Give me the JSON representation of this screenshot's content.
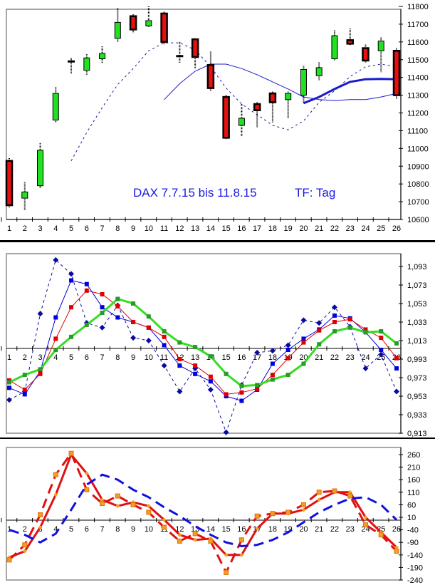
{
  "chart_data": [
    {
      "type": "candlestick",
      "title": "DAX 7.7.15 bis 11.8.15",
      "subtitle": "TF: Tag",
      "x": [
        1,
        2,
        3,
        4,
        5,
        6,
        7,
        8,
        9,
        10,
        11,
        12,
        13,
        14,
        15,
        16,
        17,
        18,
        19,
        20,
        21,
        22,
        23,
        24,
        25,
        26
      ],
      "ylim": [
        10600,
        11800
      ],
      "yticks": [
        11800,
        11700,
        11600,
        11500,
        11400,
        11300,
        11200,
        11100,
        11000,
        10900,
        10800,
        10700,
        10600
      ],
      "candles": [
        {
          "x": 1,
          "open": 10930,
          "close": 10680,
          "high": 10945,
          "low": 10665,
          "color": "red"
        },
        {
          "x": 2,
          "open": 10720,
          "close": 10755,
          "high": 10810,
          "low": 10650,
          "color": "green"
        },
        {
          "x": 3,
          "open": 10790,
          "close": 10990,
          "high": 11030,
          "low": 10775,
          "color": "green"
        },
        {
          "x": 4,
          "open": 11160,
          "close": 11310,
          "high": 11345,
          "low": 11145,
          "color": "green"
        },
        {
          "x": 5,
          "open": 11490,
          "close": 11485,
          "high": 11510,
          "low": 11420,
          "color": "doji"
        },
        {
          "x": 6,
          "open": 11440,
          "close": 11510,
          "high": 11530,
          "low": 11415,
          "color": "green"
        },
        {
          "x": 7,
          "open": 11505,
          "close": 11535,
          "high": 11575,
          "low": 11480,
          "color": "green"
        },
        {
          "x": 8,
          "open": 11620,
          "close": 11710,
          "high": 11790,
          "low": 11600,
          "color": "green"
        },
        {
          "x": 9,
          "open": 11745,
          "close": 11670,
          "high": 11755,
          "low": 11650,
          "color": "red"
        },
        {
          "x": 10,
          "open": 11690,
          "close": 11720,
          "high": 11800,
          "low": 11685,
          "color": "green"
        },
        {
          "x": 11,
          "open": 11760,
          "close": 11600,
          "high": 11770,
          "low": 11585,
          "color": "red"
        },
        {
          "x": 12,
          "open": 11520,
          "close": 11515,
          "high": 11600,
          "low": 11480,
          "color": "doji"
        },
        {
          "x": 13,
          "open": 11615,
          "close": 11515,
          "high": 11620,
          "low": 11450,
          "color": "red"
        },
        {
          "x": 14,
          "open": 11470,
          "close": 11340,
          "high": 11545,
          "low": 11325,
          "color": "red"
        },
        {
          "x": 15,
          "open": 11290,
          "close": 11060,
          "high": 11300,
          "low": 11050,
          "color": "red"
        },
        {
          "x": 16,
          "open": 11130,
          "close": 11170,
          "high": 11250,
          "low": 11065,
          "color": "green"
        },
        {
          "x": 17,
          "open": 11250,
          "close": 11215,
          "high": 11260,
          "low": 11120,
          "color": "red"
        },
        {
          "x": 18,
          "open": 11310,
          "close": 11260,
          "high": 11320,
          "low": 11145,
          "color": "red"
        },
        {
          "x": 19,
          "open": 11275,
          "close": 11310,
          "high": 11320,
          "low": 11170,
          "color": "green"
        },
        {
          "x": 20,
          "open": 11300,
          "close": 11445,
          "high": 11465,
          "low": 11255,
          "color": "green"
        },
        {
          "x": 21,
          "open": 11410,
          "close": 11455,
          "high": 11485,
          "low": 11385,
          "color": "green"
        },
        {
          "x": 22,
          "open": 11505,
          "close": 11635,
          "high": 11665,
          "low": 11495,
          "color": "green"
        },
        {
          "x": 23,
          "open": 11610,
          "close": 11590,
          "high": 11675,
          "low": 11580,
          "color": "red"
        },
        {
          "x": 24,
          "open": 11565,
          "close": 11495,
          "high": 11585,
          "low": 11485,
          "color": "red"
        },
        {
          "x": 25,
          "open": 11550,
          "close": 11605,
          "high": 11625,
          "low": 11430,
          "color": "green"
        },
        {
          "x": 26,
          "open": 11550,
          "close": 11300,
          "high": 11565,
          "low": 11280,
          "color": "red"
        }
      ],
      "overlays": [
        {
          "name": "MA dashed",
          "style": "dashed",
          "color": "#1a1aa8",
          "x": [
            5,
            6,
            7,
            8,
            9,
            10,
            11,
            12,
            13,
            14,
            15,
            16,
            17,
            18,
            19,
            20,
            21,
            22,
            23,
            24,
            25,
            26
          ],
          "values": [
            10930,
            11090,
            11230,
            11360,
            11450,
            11550,
            11595,
            11595,
            11555,
            11460,
            11340,
            11250,
            11190,
            11130,
            11105,
            11155,
            11260,
            11325,
            11405,
            11460,
            11475,
            11460
          ]
        },
        {
          "name": "MA thin solid",
          "style": "solid",
          "color": "#1a1acc",
          "x": [
            11,
            12,
            13,
            14,
            15,
            16,
            17,
            18,
            19,
            20,
            21,
            22,
            23,
            24,
            25,
            26
          ],
          "values": [
            11275,
            11365,
            11435,
            11475,
            11475,
            11450,
            11415,
            11375,
            11335,
            11290,
            11275,
            11270,
            11275,
            11275,
            11290,
            11310
          ]
        },
        {
          "name": "MA bold",
          "style": "solid-thick",
          "color": "#1a1acc",
          "x": [
            20,
            21,
            22,
            23,
            24,
            25,
            26
          ],
          "values": [
            11255,
            11290,
            11335,
            11375,
            11390,
            11392,
            11390
          ]
        }
      ]
    },
    {
      "type": "line",
      "x": [
        1,
        2,
        3,
        4,
        5,
        6,
        7,
        8,
        9,
        10,
        11,
        12,
        13,
        14,
        15,
        16,
        17,
        18,
        19,
        20,
        21,
        22,
        23,
        24,
        25,
        26
      ],
      "ylim": [
        0.913,
        1.093
      ],
      "yticks": [
        "1,093",
        "1,073",
        "1,053",
        "1,033",
        "1,013",
        "0,993",
        "0,973",
        "0,953",
        "0,933",
        "0,913"
      ],
      "baseline": 1.0,
      "series": [
        {
          "name": "dark blue dashed diamonds",
          "color": "#0a0aa0",
          "style": "dashed",
          "marker": "diamond",
          "values": [
            0.949,
            0.958,
            1.042,
            1.1,
            1.085,
            1.032,
            1.027,
            1.051,
            1.016,
            1.013,
            0.986,
            0.958,
            0.983,
            0.96,
            0.914,
            0.965,
            1.0,
            1.002,
            1.008,
            1.035,
            1.032,
            1.049,
            1.028,
            0.983,
            0.998,
            0.958
          ]
        },
        {
          "name": "blue thin squares",
          "color": "#0000e0",
          "style": "solid",
          "marker": "square",
          "values": [
            0.962,
            0.955,
            0.98,
            1.038,
            1.078,
            1.074,
            1.049,
            1.038,
            1.033,
            1.027,
            1.008,
            0.986,
            0.977,
            0.969,
            0.953,
            0.948,
            0.96,
            0.988,
            1.003,
            1.015,
            1.025,
            1.04,
            1.037,
            1.022,
            1.003,
            0.983
          ]
        },
        {
          "name": "red thin squares",
          "color": "#e00000",
          "style": "solid",
          "marker": "square",
          "values": [
            0.97,
            0.96,
            0.977,
            1.015,
            1.049,
            1.067,
            1.063,
            1.05,
            1.033,
            1.027,
            1.017,
            0.993,
            0.986,
            0.974,
            0.955,
            0.957,
            0.961,
            0.976,
            0.994,
            1.011,
            1.024,
            1.033,
            1.036,
            1.025,
            1.016,
            0.994
          ]
        },
        {
          "name": "green thick squares",
          "color": "#33dd22",
          "style": "solid-thick",
          "marker": "square",
          "values": [
            0.968,
            0.976,
            0.982,
            1.003,
            1.017,
            1.03,
            1.043,
            1.058,
            1.053,
            1.039,
            1.023,
            1.011,
            1.006,
            0.996,
            0.977,
            0.964,
            0.965,
            0.971,
            0.976,
            0.988,
            1.009,
            1.023,
            1.027,
            1.022,
            1.023,
            1.01
          ]
        }
      ]
    },
    {
      "type": "line",
      "x": [
        1,
        2,
        3,
        4,
        5,
        6,
        7,
        8,
        9,
        10,
        11,
        12,
        13,
        14,
        15,
        16,
        17,
        18,
        19,
        20,
        21,
        22,
        23,
        24,
        25,
        26
      ],
      "ylim": [
        -240,
        260
      ],
      "yticks": [
        "260",
        "210",
        "160",
        "110",
        "60",
        "10",
        "-40",
        "-90",
        "-140",
        "-190",
        "-240"
      ],
      "baseline": 0,
      "series": [
        {
          "name": "red solid orange diamonds",
          "color": "#e01010",
          "style": "solid-thick",
          "marker": "diamond",
          "values": [
            -150,
            -125,
            -30,
            100,
            260,
            185,
            80,
            55,
            70,
            55,
            0,
            -60,
            -80,
            -75,
            -140,
            -140,
            -35,
            25,
            25,
            40,
            80,
            110,
            110,
            10,
            -50,
            -110
          ]
        },
        {
          "name": "red dashed orange squares",
          "color": "#e01010",
          "style": "dashed-thick",
          "marker": "square",
          "values": [
            -160,
            -100,
            20,
            180,
            265,
            120,
            65,
            95,
            60,
            30,
            -30,
            -85,
            -55,
            -85,
            -210,
            -80,
            15,
            25,
            30,
            60,
            110,
            115,
            95,
            -20,
            -60,
            -125
          ]
        },
        {
          "name": "blue dashed",
          "color": "#1010e0",
          "style": "dashed-thick",
          "marker": "none",
          "values": [
            -40,
            -60,
            -90,
            -55,
            40,
            140,
            180,
            160,
            120,
            90,
            50,
            15,
            -25,
            -60,
            -90,
            -105,
            -100,
            -80,
            -50,
            -10,
            30,
            60,
            85,
            90,
            60,
            0
          ]
        }
      ]
    }
  ],
  "labels": {
    "top_title": "DAX 7.7.15 bis 11.8.15",
    "top_subtitle": "TF: Tag"
  }
}
